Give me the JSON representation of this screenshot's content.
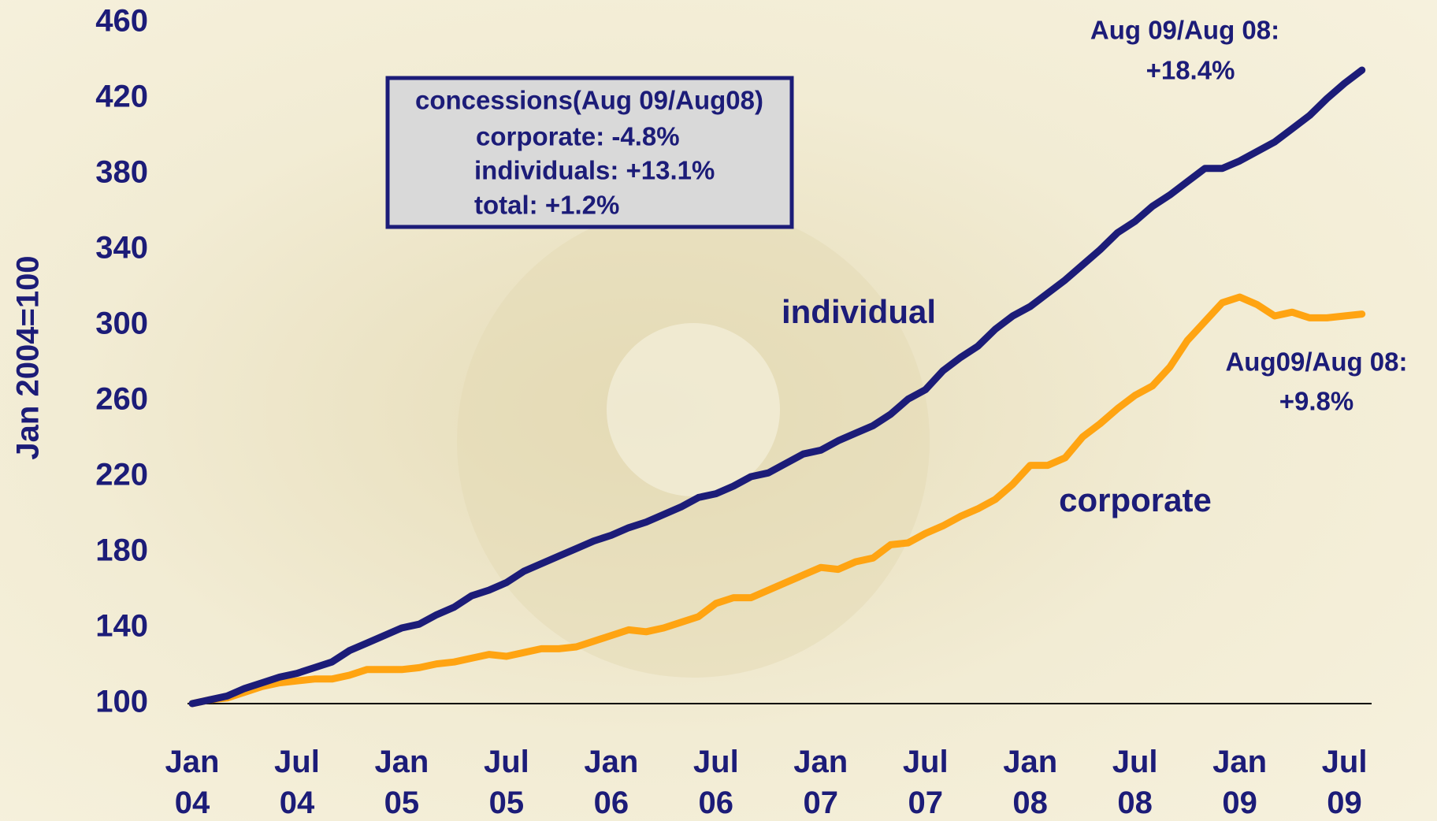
{
  "chart_data": {
    "type": "line",
    "y_label": "Jan 2004=100",
    "categories": [
      "Jan 04",
      null,
      null,
      null,
      null,
      null,
      "Jul 04",
      null,
      null,
      null,
      null,
      null,
      "Jan 05",
      null,
      null,
      null,
      null,
      null,
      "Jul 05",
      null,
      null,
      null,
      null,
      null,
      "Jan 06",
      null,
      null,
      null,
      null,
      null,
      "Jul 06",
      null,
      null,
      null,
      null,
      null,
      "Jan 07",
      null,
      null,
      null,
      null,
      null,
      "Jul 07",
      null,
      null,
      null,
      null,
      null,
      "Jan 08",
      null,
      null,
      null,
      null,
      null,
      "Jul 08",
      null,
      null,
      null,
      null,
      null,
      "Jan 09",
      null,
      null,
      null,
      null,
      null,
      "Jul 09",
      null
    ],
    "series": [
      {
        "name": "individual",
        "color": "#1c1c78",
        "values": [
          100,
          102,
          104,
          108,
          111,
          114,
          116,
          119,
          122,
          128,
          132,
          136,
          140,
          142,
          147,
          151,
          157,
          160,
          164,
          170,
          174,
          178,
          182,
          186,
          189,
          193,
          196,
          200,
          204,
          209,
          211,
          215,
          220,
          222,
          227,
          232,
          234,
          239,
          243,
          247,
          253,
          261,
          266,
          276,
          283,
          289,
          298,
          305,
          310,
          317,
          324,
          332,
          340,
          349,
          355,
          363,
          369,
          376,
          383,
          383,
          387,
          392,
          397,
          404,
          411,
          420,
          428,
          435
        ]
      },
      {
        "name": "corporate",
        "color": "#ffa412",
        "values": [
          100,
          102,
          103,
          106,
          109,
          111,
          112,
          113,
          113,
          115,
          118,
          118,
          118,
          119,
          121,
          122,
          124,
          126,
          125,
          127,
          129,
          129,
          130,
          133,
          136,
          139,
          138,
          140,
          143,
          146,
          153,
          156,
          156,
          160,
          164,
          168,
          172,
          171,
          175,
          177,
          184,
          185,
          190,
          194,
          199,
          203,
          208,
          216,
          226,
          226,
          230,
          241,
          248,
          256,
          263,
          268,
          278,
          292,
          302,
          312,
          315,
          311,
          305,
          307,
          304,
          304,
          305,
          306
        ]
      }
    ],
    "ylim": [
      100,
      460
    ],
    "yticks": [
      100,
      140,
      180,
      220,
      260,
      300,
      340,
      380,
      420,
      460
    ],
    "annotations": {
      "box": [
        "concessions(Aug 09/Aug08)",
        "corporate: -4.8%",
        "individuals: +13.1%",
        "total: +1.2%"
      ],
      "individual_change": [
        "Aug 09/Aug 08:",
        "+18.4%"
      ],
      "corporate_change": [
        "Aug09/Aug 08:",
        "+9.8%"
      ]
    }
  }
}
